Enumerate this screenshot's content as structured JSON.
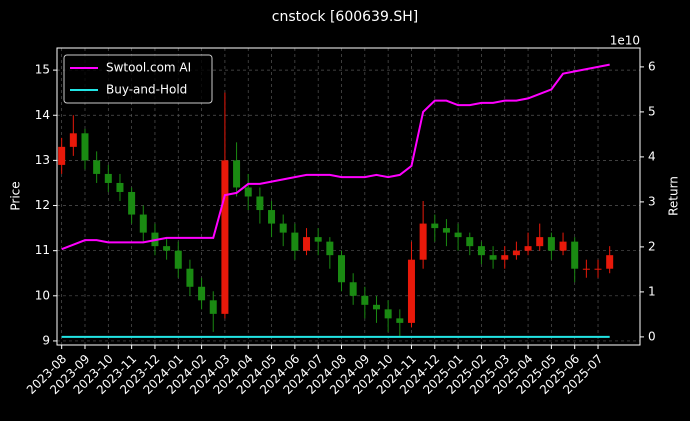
{
  "chart_data": {
    "type": "candlestick",
    "title": "cnstock [600639.SH]",
    "ylabel": "Price",
    "y2label": "Return",
    "y2_offset_label": "1e10",
    "x": [
      0,
      0.5,
      1,
      1.5,
      2,
      2.5,
      3,
      3.5,
      4,
      4.5,
      5,
      5.5,
      6,
      6.5,
      7,
      7.5,
      8,
      8.5,
      9,
      9.5,
      10,
      10.5,
      11,
      11.5,
      12,
      12.5,
      13,
      13.5,
      14,
      14.5,
      15,
      15.5,
      16,
      16.5,
      17,
      17.5,
      18,
      18.5,
      19,
      19.5,
      20,
      20.5,
      21,
      21.5,
      22,
      22.5,
      23,
      23.5
    ],
    "open": [
      12.9,
      13.3,
      13.6,
      13.0,
      12.7,
      12.5,
      12.3,
      11.8,
      11.4,
      11.1,
      11.0,
      10.6,
      10.2,
      9.9,
      9.6,
      13.0,
      12.4,
      12.2,
      11.9,
      11.6,
      11.4,
      11.0,
      11.3,
      11.2,
      10.9,
      10.3,
      10.0,
      9.8,
      9.7,
      9.5,
      9.4,
      10.8,
      11.6,
      11.5,
      11.4,
      11.3,
      11.1,
      10.9,
      10.8,
      10.9,
      11.0,
      11.1,
      11.3,
      11.0,
      11.2,
      10.6,
      10.6,
      10.6
    ],
    "high": [
      13.5,
      14.0,
      13.7,
      13.2,
      12.9,
      12.7,
      12.4,
      12.0,
      11.6,
      11.3,
      11.2,
      10.8,
      10.4,
      10.1,
      14.5,
      13.4,
      12.7,
      12.4,
      12.1,
      11.8,
      11.6,
      11.5,
      11.5,
      11.3,
      11.0,
      10.5,
      10.2,
      10.0,
      9.9,
      9.7,
      11.2,
      12.1,
      11.8,
      11.7,
      11.6,
      11.4,
      11.2,
      11.1,
      11.1,
      11.2,
      11.4,
      11.6,
      11.4,
      11.4,
      11.3,
      10.8,
      10.8,
      11.1
    ],
    "low": [
      12.7,
      13.1,
      12.8,
      12.5,
      12.3,
      12.1,
      11.6,
      11.2,
      10.9,
      10.8,
      10.4,
      10.0,
      9.7,
      9.2,
      9.5,
      12.2,
      11.9,
      11.6,
      11.3,
      11.1,
      10.8,
      10.9,
      10.9,
      10.6,
      10.1,
      9.8,
      9.5,
      9.4,
      9.2,
      9.1,
      9.3,
      10.6,
      11.2,
      11.1,
      11.0,
      10.9,
      10.7,
      10.6,
      10.6,
      10.8,
      10.9,
      11.0,
      10.8,
      10.9,
      10.3,
      10.4,
      10.4,
      10.5
    ],
    "close": [
      13.3,
      13.6,
      13.0,
      12.7,
      12.5,
      12.3,
      11.8,
      11.4,
      11.1,
      11.0,
      10.6,
      10.2,
      9.9,
      9.6,
      13.0,
      12.4,
      12.2,
      11.9,
      11.6,
      11.4,
      11.0,
      11.3,
      11.2,
      10.9,
      10.3,
      10.0,
      9.8,
      9.7,
      9.5,
      9.4,
      10.8,
      11.6,
      11.5,
      11.4,
      11.3,
      11.1,
      10.9,
      10.8,
      10.9,
      11.0,
      11.1,
      11.3,
      11.0,
      11.2,
      10.6,
      10.6,
      10.6,
      10.9
    ],
    "up_color": "#e8190a",
    "down_color": "#1a8a12",
    "series": [
      {
        "name": "Swtool.com AI",
        "color": "#ff00ff",
        "axis": "y2",
        "values": [
          1.95,
          2.05,
          2.15,
          2.15,
          2.1,
          2.1,
          2.1,
          2.1,
          2.15,
          2.2,
          2.2,
          2.2,
          2.2,
          2.2,
          3.15,
          3.2,
          3.4,
          3.4,
          3.45,
          3.5,
          3.55,
          3.6,
          3.6,
          3.6,
          3.55,
          3.55,
          3.55,
          3.6,
          3.55,
          3.6,
          3.8,
          5.0,
          5.25,
          5.25,
          5.15,
          5.15,
          5.2,
          5.2,
          5.25,
          5.25,
          5.3,
          5.4,
          5.5,
          5.85,
          5.9,
          5.95,
          6.0,
          6.05
        ]
      },
      {
        "name": "Buy-and-Hold",
        "color": "#22e5e5",
        "axis": "y2",
        "values": [
          0,
          0,
          0,
          0,
          0,
          0,
          0,
          0,
          0,
          0,
          0,
          0,
          0,
          0,
          0,
          0,
          0,
          0,
          0,
          0,
          0,
          0,
          0,
          0,
          0,
          0,
          0,
          0,
          0,
          0,
          0,
          0,
          0,
          0,
          0,
          0,
          0,
          0,
          0,
          0,
          0,
          0,
          0,
          0,
          0,
          0,
          0,
          0
        ]
      }
    ],
    "xlim": [
      -0.2,
      24.8
    ],
    "xticks": [
      {
        "value": 0,
        "label": "2023-08"
      },
      {
        "value": 1,
        "label": "2023-09"
      },
      {
        "value": 2,
        "label": "2023-10"
      },
      {
        "value": 3,
        "label": "2023-11"
      },
      {
        "value": 4,
        "label": "2023-12"
      },
      {
        "value": 5,
        "label": "2024-01"
      },
      {
        "value": 6,
        "label": "2024-02"
      },
      {
        "value": 7,
        "label": "2024-03"
      },
      {
        "value": 8,
        "label": "2024-04"
      },
      {
        "value": 9,
        "label": "2024-05"
      },
      {
        "value": 10,
        "label": "2024-06"
      },
      {
        "value": 11,
        "label": "2024-07"
      },
      {
        "value": 12,
        "label": "2024-08"
      },
      {
        "value": 13,
        "label": "2024-09"
      },
      {
        "value": 14,
        "label": "2024-10"
      },
      {
        "value": 15,
        "label": "2024-11"
      },
      {
        "value": 16,
        "label": "2024-12"
      },
      {
        "value": 17,
        "label": "2025-01"
      },
      {
        "value": 18,
        "label": "2025-02"
      },
      {
        "value": 19,
        "label": "2025-03"
      },
      {
        "value": 20,
        "label": "2025-04"
      },
      {
        "value": 21,
        "label": "2025-05"
      },
      {
        "value": 22,
        "label": "2025-06"
      },
      {
        "value": 23,
        "label": "2025-07"
      }
    ],
    "ylim": [
      8.91,
      15.49
    ],
    "yticks": [
      9,
      10,
      11,
      12,
      13,
      14,
      15
    ],
    "y2lim": [
      -0.18,
      6.42
    ],
    "y2ticks": [
      0,
      1,
      2,
      3,
      4,
      5,
      6
    ],
    "grid": true,
    "legend": "upper left"
  }
}
